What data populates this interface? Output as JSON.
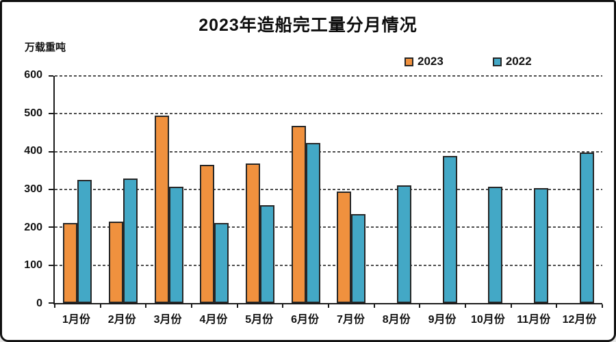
{
  "header": {
    "title": "2023年造船完工量分月情况",
    "y_axis_unit": "万载重吨"
  },
  "legend": {
    "items": [
      {
        "label": "2023",
        "color": "#F0913E"
      },
      {
        "label": "2022",
        "color": "#43A8C6"
      }
    ]
  },
  "chart_data": {
    "type": "bar",
    "title": "2023年造船完工量分月情况",
    "ylabel": "万载重吨",
    "xlabel": "",
    "categories": [
      "1月份",
      "2月份",
      "3月份",
      "4月份",
      "5月份",
      "6月份",
      "7月份",
      "8月份",
      "9月份",
      "10月份",
      "11月份",
      "12月份"
    ],
    "series": [
      {
        "name": "2023",
        "color": "#F0913E",
        "border_color": "#262626",
        "values": [
          211,
          215,
          495,
          365,
          369,
          468,
          295,
          null,
          null,
          null,
          null,
          null
        ]
      },
      {
        "name": "2022",
        "color": "#43A8C6",
        "border_color": "#262626",
        "values": [
          326,
          329,
          308,
          212,
          258,
          423,
          235,
          310,
          388,
          308,
          303,
          397
        ]
      }
    ],
    "ylim": [
      0,
      600
    ],
    "yticks": [
      0,
      100,
      200,
      300,
      400,
      500,
      600
    ],
    "grid": "horizontal-dashed",
    "gridline_color": "#4d4d4d",
    "legend_position": "top-right"
  }
}
